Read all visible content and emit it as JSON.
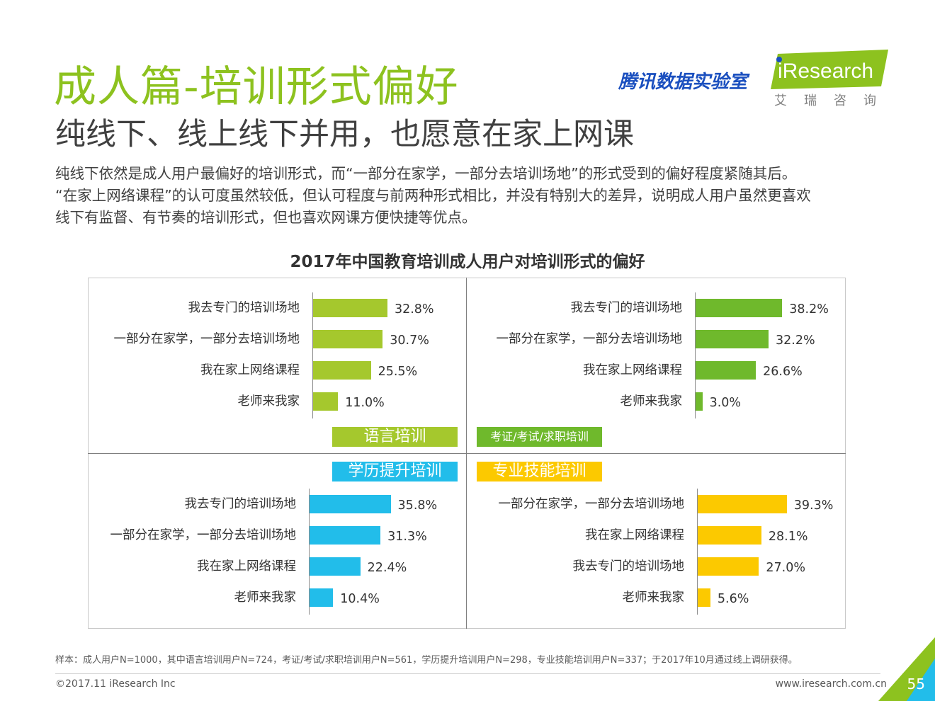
{
  "header": {
    "title": "成人篇-培训形式偏好",
    "subtitle": "纯线下、线上线下并用，也愿意在家上网课",
    "paragraph": [
      "纯线下依然是成人用户最偏好的培训形式，而“一部分在家学，一部分去培训场地”的形式受到的偏好程度紧随其后。",
      "“在家上网络课程”的认可度虽然较低，但认可程度与前两种形式相比，并没有特别大的差异，说明成人用户虽然更喜欢",
      "线下有监督、有节奏的培训形式，但也喜欢网课方便快捷等优点。"
    ],
    "title_color": "#8dc21f"
  },
  "logos": {
    "tencent": "腾讯数据实验室",
    "iresearch": "iResearch",
    "iresearch_cn": "艾瑞咨询",
    "tencent_color": "#1a4fbf",
    "iresearch_color": "#8dc21f"
  },
  "chart_data": {
    "type": "bar",
    "title": "2017年中国教育培训成人用户对培训形式的偏好",
    "unit": "%",
    "panels": [
      {
        "name": "语言培训",
        "color": "#a5c82d",
        "categories": [
          "我去专门的培训场地",
          "一部分在家学，一部分去培训场地",
          "我在家上网络课程",
          "老师来我家"
        ],
        "values": [
          32.8,
          30.7,
          25.5,
          11.0
        ],
        "labels": [
          "32.8%",
          "30.7%",
          "25.5%",
          "11.0%"
        ]
      },
      {
        "name": "考证/考试/求职培训",
        "color": "#6fb92c",
        "categories": [
          "我去专门的培训场地",
          "一部分在家学，一部分去培训场地",
          "我在家上网络课程",
          "老师来我家"
        ],
        "values": [
          38.2,
          32.2,
          26.6,
          3.0
        ],
        "labels": [
          "38.2%",
          "32.2%",
          "26.6%",
          "3.0%"
        ]
      },
      {
        "name": "学历提升培训",
        "color": "#22bdea",
        "categories": [
          "我去专门的培训场地",
          "一部分在家学，一部分去培训场地",
          "我在家上网络课程",
          "老师来我家"
        ],
        "values": [
          35.8,
          31.3,
          22.4,
          10.4
        ],
        "labels": [
          "35.8%",
          "31.3%",
          "22.4%",
          "10.4%"
        ]
      },
      {
        "name": "专业技能培训",
        "color": "#fcc900",
        "categories": [
          "一部分在家学，一部分去培训场地",
          "我在家上网络课程",
          "我去专门的培训场地",
          "老师来我家"
        ],
        "values": [
          39.3,
          28.1,
          27.0,
          5.6
        ],
        "labels": [
          "39.3%",
          "28.1%",
          "27.0%",
          "5.6%"
        ]
      }
    ]
  },
  "footer": {
    "note": "样本：成人用户N=1000，其中语言培训用户N=724，考证/考试/求职培训用户N=561，学历提升培训用户N=298，专业技能培训用户N=337；于2017年10月通过线上调研获得。",
    "copyright": "©2017.11 iResearch Inc",
    "website": "www.iresearch.com.cn",
    "page_number": "55"
  }
}
